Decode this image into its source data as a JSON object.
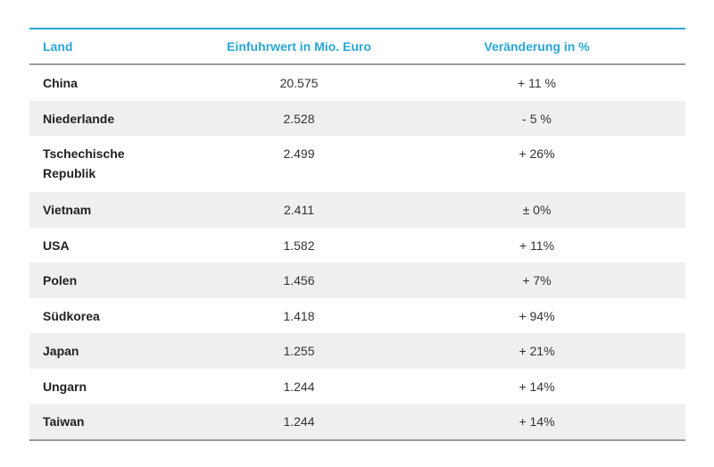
{
  "table": {
    "headers": {
      "land": "Land",
      "value": "Einfuhrwert in Mio. Euro",
      "change": "Veränderung in %"
    },
    "rows": [
      {
        "land": "China",
        "value": "20.575",
        "change": "+ 11 %"
      },
      {
        "land": "Niederlande",
        "value": "2.528",
        "change": "- 5 %"
      },
      {
        "land": "Tschechische Republik",
        "value": "2.499",
        "change": "+ 26%"
      },
      {
        "land": "Vietnam",
        "value": "2.411",
        "change": "± 0%"
      },
      {
        "land": "USA",
        "value": "1.582",
        "change": "+ 11%"
      },
      {
        "land": "Polen",
        "value": "1.456",
        "change": "+ 7%"
      },
      {
        "land": "Südkorea",
        "value": "1.418",
        "change": "+ 94%"
      },
      {
        "land": "Japan",
        "value": "1.255",
        "change": "+ 21%"
      },
      {
        "land": "Ungarn",
        "value": "1.244",
        "change": "+ 14%"
      },
      {
        "land": "Taiwan",
        "value": "1.244",
        "change": "+ 14%"
      }
    ]
  },
  "colors": {
    "accent": "#2aa7d6",
    "stripe": "#efefef",
    "rule": "#9b9b9b"
  }
}
